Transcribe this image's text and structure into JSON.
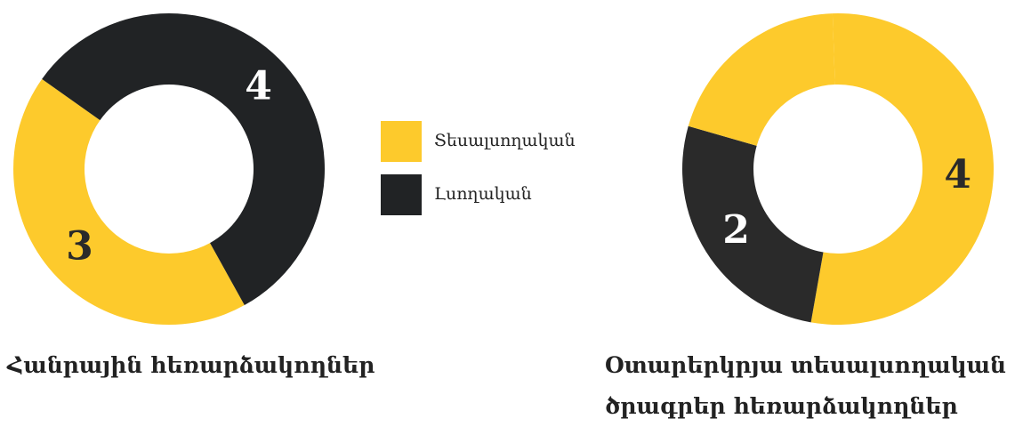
{
  "chart_data": [
    {
      "type": "pie",
      "title": "Հանրային հեռարձակողներ",
      "categories": [
        "Տեսալսողական",
        "Լսողական"
      ],
      "values": [
        3,
        4
      ],
      "colors": [
        "#fdca2c",
        "#212325"
      ]
    },
    {
      "type": "pie",
      "title": "Օտարերկրյա տեսալսողական ծրագրեր հեռարձակողներ",
      "categories": [
        "Տեսալսողական",
        "Լսողական",
        null
      ],
      "values": [
        4,
        2,
        1.5
      ],
      "value_labels": [
        "4",
        "2",
        null
      ],
      "colors": [
        "#fdca2c",
        "#2a2a2a",
        "#fdca2c"
      ]
    }
  ]
}
